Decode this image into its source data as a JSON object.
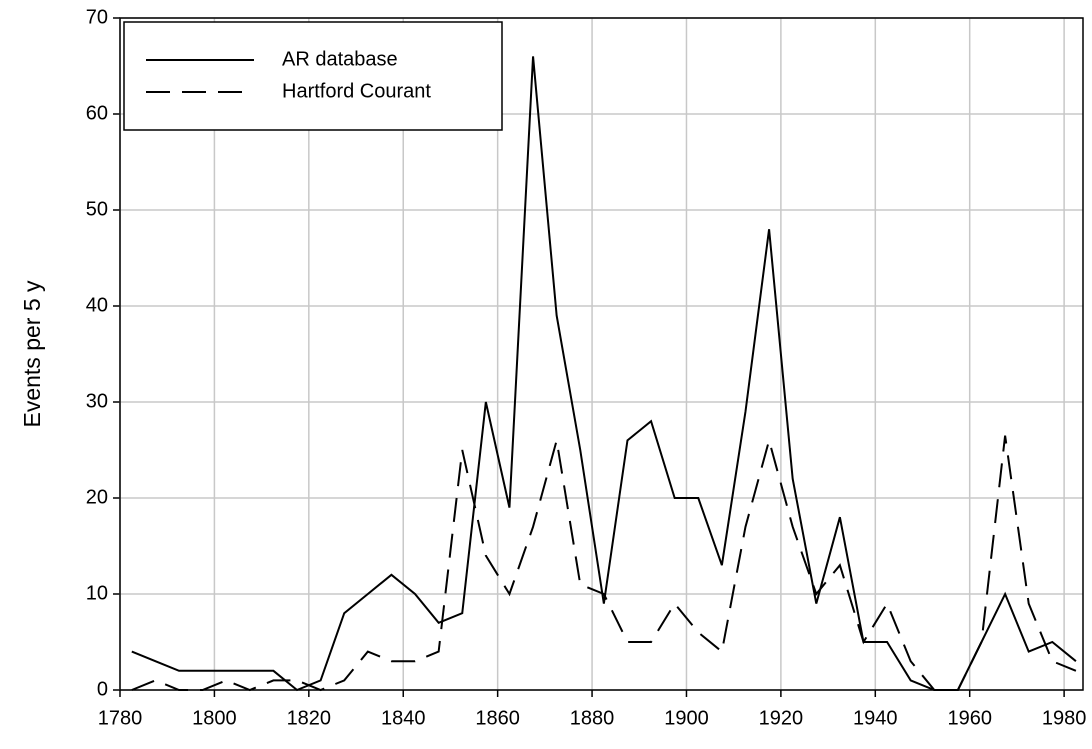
{
  "chart_data": {
    "type": "line",
    "ylabel": "Events per 5 y",
    "x": [
      1782.5,
      1787.5,
      1792.5,
      1797.5,
      1802.5,
      1807.5,
      1812.5,
      1817.5,
      1822.5,
      1827.5,
      1832.5,
      1837.5,
      1842.5,
      1847.5,
      1852.5,
      1857.5,
      1862.5,
      1867.5,
      1872.5,
      1877.5,
      1882.5,
      1887.5,
      1892.5,
      1897.5,
      1902.5,
      1907.5,
      1912.5,
      1917.5,
      1922.5,
      1927.5,
      1932.5,
      1937.5,
      1942.5,
      1947.5,
      1952.5,
      1957.5,
      1962.5,
      1967.5,
      1972.5,
      1977.5,
      1982.5
    ],
    "series": [
      {
        "name": "AR database",
        "color": "#000000",
        "line_style": "solid",
        "values": [
          4,
          3,
          2,
          2,
          2,
          2,
          2,
          0,
          1,
          8,
          10,
          12,
          10,
          7,
          8,
          30,
          19,
          66,
          39,
          25,
          9,
          26,
          28,
          20,
          20,
          13,
          29,
          48,
          22,
          9,
          18,
          5,
          5,
          1,
          0,
          0,
          5,
          10,
          4,
          5,
          3
        ]
      },
      {
        "name": "Hartford Courant",
        "color": "#000000",
        "line_style": "dashed",
        "values": [
          0,
          1,
          0,
          0,
          1,
          0,
          1,
          1,
          0,
          1,
          4,
          3,
          3,
          4,
          25,
          14,
          10,
          17,
          26,
          11,
          10,
          5,
          5,
          9,
          6,
          4,
          17,
          26,
          17,
          10,
          13,
          5,
          9,
          3,
          0,
          0,
          5,
          26.5,
          9,
          3,
          2
        ]
      }
    ],
    "xlim": [
      1780,
      1984
    ],
    "xticks": [
      1780,
      1800,
      1820,
      1840,
      1860,
      1880,
      1900,
      1920,
      1940,
      1960,
      1980
    ],
    "ylim": [
      0,
      70
    ],
    "yticks": [
      0,
      10,
      20,
      30,
      40,
      50,
      60,
      70
    ],
    "grid": true,
    "legend": "upper left"
  }
}
